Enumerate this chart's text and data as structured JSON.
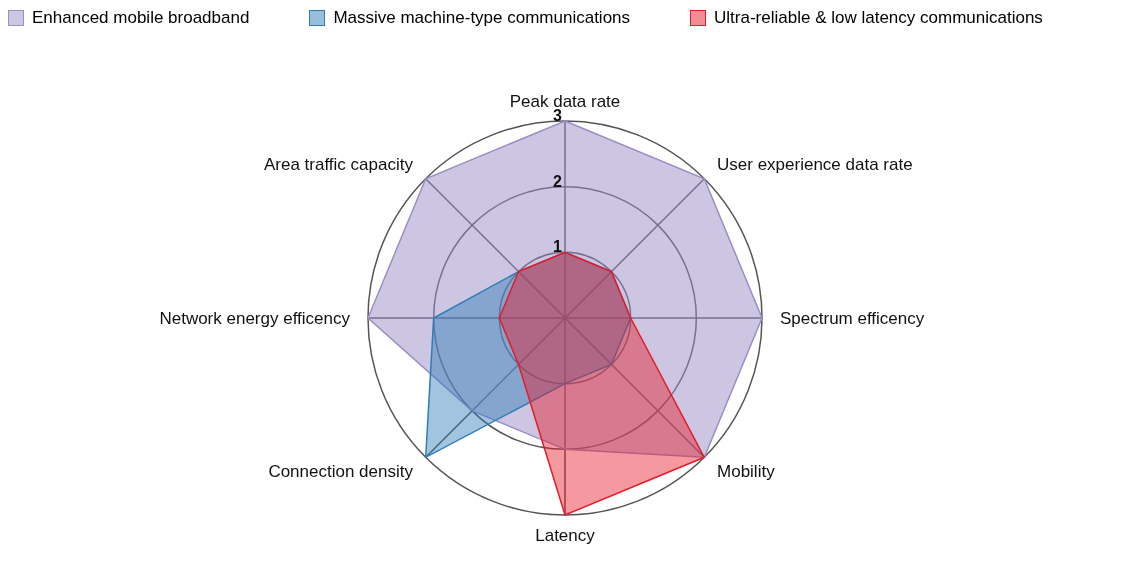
{
  "chart_data": {
    "type": "radar",
    "categories": [
      "Peak data rate",
      "User experience data rate",
      "Spectrum efficency",
      "Mobility",
      "Latency",
      "Connection density",
      "Network energy efficency",
      "Area traffic capacity"
    ],
    "series": [
      {
        "name": "Enhanced mobile broadband",
        "color": "#9b8dc5",
        "values": [
          3,
          3,
          3,
          3,
          2,
          2,
          3,
          3
        ]
      },
      {
        "name": "Massive machine-type communications",
        "color": "#2f7db8",
        "values": [
          1,
          1,
          1,
          1,
          1,
          3,
          2,
          1
        ]
      },
      {
        "name": "Ultra-reliable & low latency communications",
        "color": "#e41c2a",
        "values": [
          1,
          1,
          1,
          3,
          3,
          1,
          1,
          1
        ]
      }
    ],
    "ylim": [
      0,
      3
    ],
    "yticks": [
      1,
      2,
      3
    ],
    "grid": true,
    "legend": "top"
  }
}
